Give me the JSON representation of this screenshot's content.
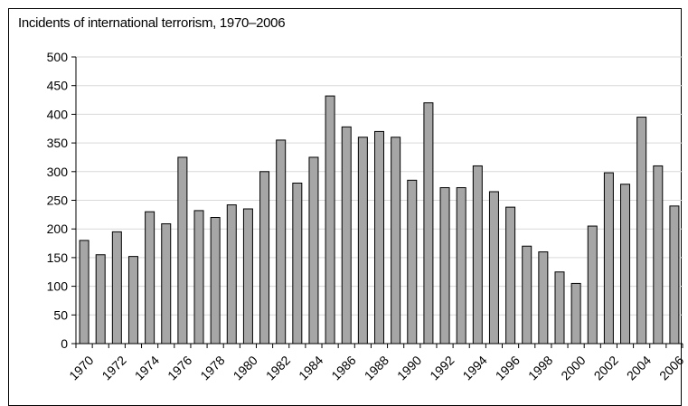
{
  "chart_data": {
    "type": "bar",
    "title": "Incidents of international terrorism, 1970–2006",
    "xlabel": "",
    "ylabel": "",
    "ylim": [
      0,
      500
    ],
    "yticks": [
      0,
      50,
      100,
      150,
      200,
      250,
      300,
      350,
      400,
      450,
      500
    ],
    "grid": true,
    "bar_color": "#a6a6a6",
    "categories": [
      "1970",
      "1971",
      "1972",
      "1973",
      "1974",
      "1975",
      "1976",
      "1977",
      "1978",
      "1979",
      "1980",
      "1981",
      "1982",
      "1983",
      "1984",
      "1985",
      "1986",
      "1987",
      "1988",
      "1989",
      "1990",
      "1991",
      "1992",
      "1993",
      "1994",
      "1995",
      "1996",
      "1997",
      "1998",
      "1999",
      "2000",
      "2001",
      "2002",
      "2003",
      "2004",
      "2005",
      "2006"
    ],
    "x_tick_labels": [
      "1970",
      "1972",
      "1974",
      "1976",
      "1978",
      "1980",
      "1982",
      "1984",
      "1986",
      "1988",
      "1990",
      "1992",
      "1994",
      "1996",
      "1998",
      "2000",
      "2002",
      "2004",
      "2006"
    ],
    "values": [
      180,
      155,
      195,
      152,
      230,
      209,
      325,
      232,
      220,
      242,
      235,
      300,
      355,
      280,
      325,
      432,
      378,
      360,
      370,
      360,
      285,
      420,
      272,
      272,
      310,
      265,
      238,
      170,
      160,
      125,
      105,
      205,
      298,
      278,
      395,
      310,
      240
    ]
  }
}
